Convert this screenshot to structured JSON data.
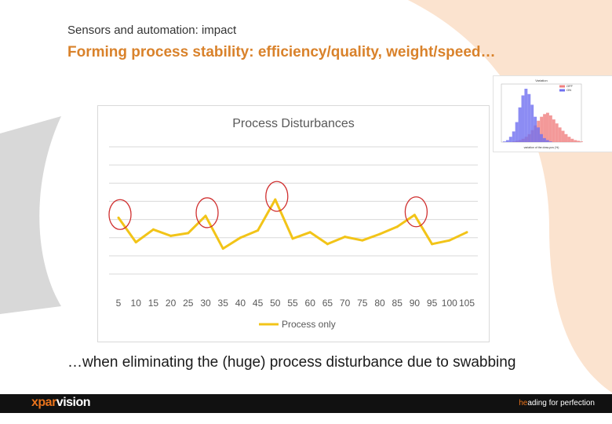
{
  "slide": {
    "subtitle": "Sensors and automation: impact",
    "title": "Forming process stability: efficiency/quality, weight/speed…",
    "caption": "…when eliminating the (huge) process disturbance due to swabbing"
  },
  "footer": {
    "logo_prefix": "xpar",
    "logo_suffix": "vision",
    "tagline_prefix": "he",
    "tagline_suffix": "ading for perfection"
  },
  "colors": {
    "accent": "#d9822b",
    "line": "#f2c418",
    "circle": "#d03030",
    "footer": "#111111",
    "hist_red": "#f08080",
    "hist_blue": "#6f6ff0"
  },
  "chart_data": [
    {
      "type": "line",
      "title": "Process Disturbances",
      "categories": [
        "5",
        "10",
        "15",
        "20",
        "25",
        "30",
        "35",
        "40",
        "45",
        "50",
        "55",
        "60",
        "65",
        "70",
        "75",
        "80",
        "85",
        "90",
        "95",
        "100",
        "105"
      ],
      "series": [
        {
          "name": "Process only",
          "values": [
            32,
            5,
            19,
            12,
            15,
            34,
            -2,
            10,
            18,
            52,
            9,
            16,
            3,
            11,
            7,
            14,
            22,
            35,
            3,
            7,
            16
          ]
        }
      ],
      "ylim": [
        -30,
        110
      ],
      "grid": true,
      "legend": "bottom",
      "highlighted_categories": [
        "5",
        "30",
        "50",
        "90"
      ]
    },
    {
      "type": "bar",
      "title": "Variation",
      "xlabel": "variation of the draw-pos (%)",
      "legend_entries": [
        "OFF",
        "ON"
      ],
      "legend": "top-right",
      "series": [
        {
          "name": "OFF",
          "values": [
            0,
            1,
            2,
            3,
            5,
            8,
            12,
            18,
            25,
            32,
            38,
            42,
            44,
            40,
            34,
            28,
            22,
            17,
            12,
            8,
            5,
            3,
            2,
            1
          ]
        },
        {
          "name": "ON",
          "values": [
            1,
            3,
            8,
            16,
            30,
            52,
            70,
            80,
            72,
            56,
            38,
            22,
            12,
            6,
            3,
            1,
            0,
            0,
            0,
            0,
            0,
            0,
            0,
            0
          ]
        }
      ]
    }
  ]
}
